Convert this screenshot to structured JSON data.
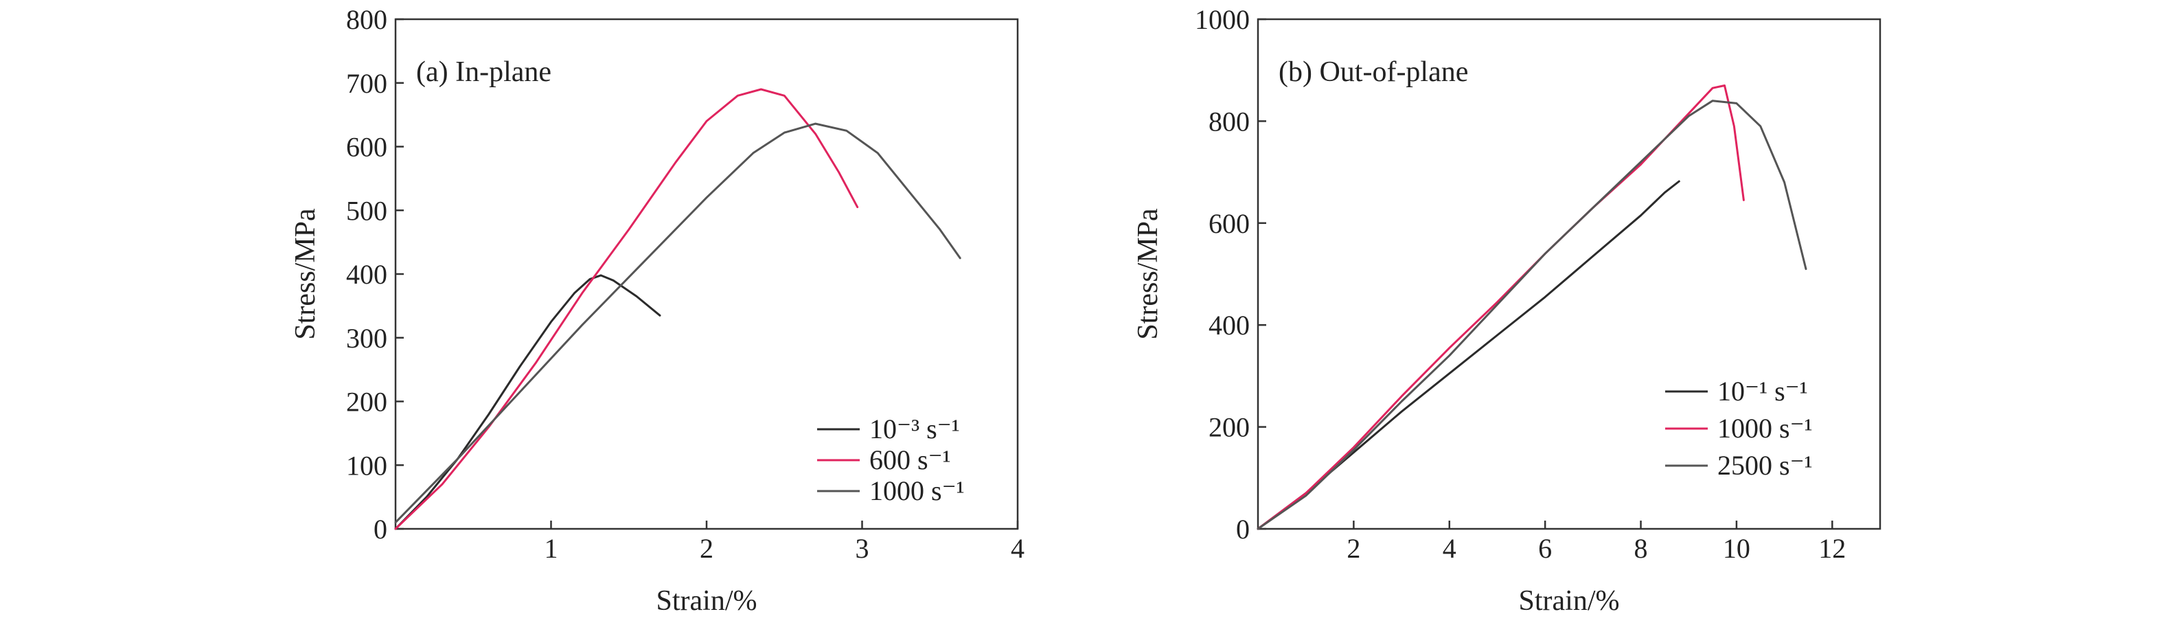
{
  "colors": {
    "black": "#2b2b2b",
    "red": "#e0245e",
    "gray": "#555555"
  },
  "chart_data": [
    {
      "type": "line",
      "title": "(a) In-plane",
      "xlabel": "Strain/%",
      "ylabel": "Stress/MPa",
      "xlim": [
        0,
        4
      ],
      "ylim": [
        0,
        800
      ],
      "xticks": [
        1,
        2,
        3,
        4
      ],
      "yticks": [
        0,
        100,
        200,
        300,
        400,
        500,
        600,
        700,
        800
      ],
      "grid": false,
      "legend_position": "bottom-right",
      "series": [
        {
          "name": "10⁻³ s⁻¹",
          "color": "#2b2b2b",
          "x": [
            0,
            0.2,
            0.4,
            0.6,
            0.8,
            1.0,
            1.15,
            1.25,
            1.32,
            1.4,
            1.55,
            1.7
          ],
          "y": [
            0,
            50,
            110,
            180,
            255,
            325,
            370,
            392,
            398,
            390,
            365,
            335
          ]
        },
        {
          "name": "600 s⁻¹",
          "color": "#e0245e",
          "x": [
            0,
            0.3,
            0.6,
            0.9,
            1.2,
            1.5,
            1.8,
            2.0,
            2.2,
            2.35,
            2.5,
            2.7,
            2.85,
            2.97
          ],
          "y": [
            0,
            70,
            160,
            260,
            370,
            470,
            575,
            640,
            680,
            690,
            680,
            620,
            560,
            505
          ]
        },
        {
          "name": "1000 s⁻¹",
          "color": "#555555",
          "x": [
            0,
            0.4,
            0.8,
            1.2,
            1.6,
            2.0,
            2.3,
            2.5,
            2.7,
            2.9,
            3.1,
            3.3,
            3.5,
            3.63
          ],
          "y": [
            10,
            110,
            215,
            320,
            420,
            520,
            590,
            622,
            636,
            625,
            590,
            530,
            470,
            425
          ]
        }
      ]
    },
    {
      "type": "line",
      "title": "(b) Out-of-plane",
      "xlabel": "Strain/%",
      "ylabel": "Stress/MPa",
      "xlim": [
        0,
        13
      ],
      "ylim": [
        0,
        1000
      ],
      "xticks": [
        2,
        4,
        6,
        8,
        10,
        12
      ],
      "yticks": [
        0,
        200,
        400,
        600,
        800,
        1000
      ],
      "grid": false,
      "legend_position": "bottom-right",
      "series": [
        {
          "name": "10⁻¹ s⁻¹",
          "color": "#2b2b2b",
          "x": [
            0,
            1,
            2,
            3,
            4,
            5,
            6,
            7,
            8,
            8.5,
            8.8
          ],
          "y": [
            0,
            70,
            150,
            230,
            305,
            380,
            455,
            535,
            615,
            660,
            682
          ]
        },
        {
          "name": "1000 s⁻¹",
          "color": "#e0245e",
          "x": [
            0,
            1,
            2,
            3,
            4,
            5,
            6,
            7,
            8,
            9,
            9.5,
            9.75,
            9.95,
            10.15
          ],
          "y": [
            0,
            70,
            160,
            260,
            355,
            445,
            540,
            630,
            715,
            815,
            865,
            870,
            790,
            645
          ]
        },
        {
          "name": "2500 s⁻¹",
          "color": "#555555",
          "x": [
            0,
            1,
            2,
            3,
            4,
            5,
            6,
            7,
            8,
            9,
            9.5,
            10,
            10.5,
            11,
            11.45
          ],
          "y": [
            0,
            65,
            155,
            250,
            340,
            440,
            540,
            630,
            720,
            810,
            840,
            835,
            790,
            680,
            510
          ]
        }
      ]
    }
  ]
}
